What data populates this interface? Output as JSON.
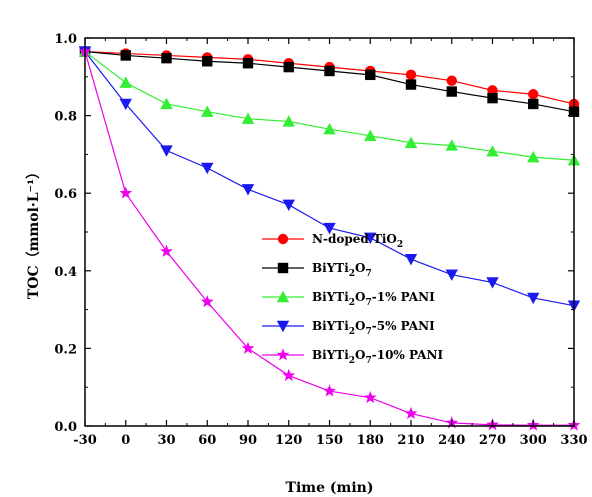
{
  "chart_data": {
    "type": "line",
    "xlabel": "Time (min)",
    "ylabel": "TOC（mmol·L⁻¹）",
    "xlim": [
      -30,
      330
    ],
    "ylim": [
      0,
      1.0
    ],
    "xticks": [
      -30,
      0,
      30,
      60,
      90,
      120,
      150,
      180,
      210,
      240,
      270,
      300,
      330
    ],
    "yticks": [
      0.0,
      0.2,
      0.4,
      0.6,
      0.8,
      1.0
    ],
    "xtick_labels": [
      "-30",
      "0",
      "30",
      "60",
      "90",
      "120",
      "150",
      "180",
      "210",
      "240",
      "270",
      "300",
      "330"
    ],
    "ytick_labels": [
      "0.0",
      "0.2",
      "0.4",
      "0.6",
      "0.8",
      "1.0"
    ],
    "x": [
      -30,
      0,
      30,
      60,
      90,
      120,
      150,
      180,
      210,
      240,
      270,
      300,
      330
    ],
    "legend_position": "center-right",
    "grid": false,
    "series": [
      {
        "name": "N-doped TiO2",
        "label_parts": [
          [
            "N-doped TiO",
            ""
          ],
          [
            "2",
            "sub"
          ]
        ],
        "color": "#ff0000",
        "marker": "circle",
        "values": [
          0.965,
          0.96,
          0.955,
          0.95,
          0.945,
          0.935,
          0.925,
          0.915,
          0.905,
          0.89,
          0.865,
          0.855,
          0.83
        ]
      },
      {
        "name": "BiYTi2O7",
        "label_parts": [
          [
            "BiYTi",
            ""
          ],
          [
            "2",
            "sub"
          ],
          [
            "O",
            ""
          ],
          [
            "7",
            "sub"
          ]
        ],
        "color": "#000000",
        "marker": "square",
        "values": [
          0.965,
          0.955,
          0.948,
          0.94,
          0.935,
          0.925,
          0.915,
          0.905,
          0.88,
          0.862,
          0.845,
          0.83,
          0.81
        ]
      },
      {
        "name": "BiYTi2O7-1% PANI",
        "label_parts": [
          [
            "BiYTi",
            ""
          ],
          [
            "2",
            "sub"
          ],
          [
            "O",
            ""
          ],
          [
            "7",
            "sub"
          ],
          [
            "-1% PANI",
            ""
          ]
        ],
        "color": "#33ee33",
        "marker": "triangle-up",
        "values": [
          0.965,
          0.885,
          0.83,
          0.81,
          0.792,
          0.785,
          0.765,
          0.748,
          0.73,
          0.723,
          0.708,
          0.693,
          0.685
        ]
      },
      {
        "name": "BiYTi2O7-5% PANI",
        "label_parts": [
          [
            "BiYTi",
            ""
          ],
          [
            "2",
            "sub"
          ],
          [
            "O",
            ""
          ],
          [
            "7",
            "sub"
          ],
          [
            "-5% PANI",
            ""
          ]
        ],
        "color": "#1a1aee",
        "marker": "triangle-down",
        "values": [
          0.965,
          0.83,
          0.71,
          0.665,
          0.61,
          0.57,
          0.51,
          0.485,
          0.43,
          0.39,
          0.37,
          0.33,
          0.31
        ]
      },
      {
        "name": "BiYTi2O7-10% PANI",
        "label_parts": [
          [
            "BiYTi",
            ""
          ],
          [
            "2",
            "sub"
          ],
          [
            "O",
            ""
          ],
          [
            "7",
            "sub"
          ],
          [
            "-10% PANI",
            ""
          ]
        ],
        "color": "#ee00ee",
        "marker": "star",
        "values": [
          0.965,
          0.6,
          0.45,
          0.32,
          0.2,
          0.13,
          0.09,
          0.073,
          0.032,
          0.008,
          0.003,
          0.002,
          0.002
        ]
      }
    ]
  }
}
